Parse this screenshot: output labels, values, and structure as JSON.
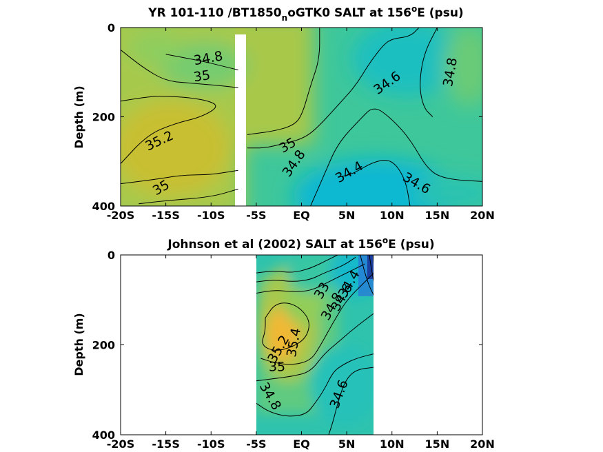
{
  "colors": {
    "ramp": [
      "#2b6fd8",
      "#08b7d0",
      "#1fbfbf",
      "#3cc79b",
      "#77cc6e",
      "#a9c84a",
      "#c9be35",
      "#f0b935"
    ],
    "contour": "#000000",
    "axis": "#000000",
    "background": "#ffffff"
  },
  "chart_data": [
    {
      "type": "heatmap",
      "title": "YR 101-110 /BT1850_noGTK0 SALT at 156ºE (psu)",
      "title_parts": {
        "pre": "YR 101-110 /BT1850",
        "sub": "n",
        "mid": "oGTK0 SALT at 156",
        "sup": "o",
        "post": "E (psu)"
      },
      "xlabel": "",
      "ylabel": "Depth (m)",
      "xlim": [
        -20,
        20
      ],
      "ylim": [
        400,
        0
      ],
      "x_ticks": [
        -20,
        -15,
        -10,
        -5,
        0,
        5,
        10,
        15,
        20
      ],
      "x_tick_labels": [
        "-20S",
        "-15S",
        "-10S",
        "-5S",
        "EQ",
        "5N",
        "10N",
        "15N",
        "20N"
      ],
      "y_ticks": [
        0,
        200,
        400
      ],
      "y_tick_labels": [
        "0",
        "200",
        "400"
      ],
      "units": "psu",
      "gap": [
        -7,
        -6
      ],
      "contour_levels": [
        34.4,
        34.6,
        34.8,
        35,
        35.2
      ],
      "contours": [
        {
          "level": 34.8,
          "points": [
            [
              -15,
              60
            ],
            [
              -11,
              75
            ],
            [
              -9,
              85
            ],
            [
              -7,
              95
            ]
          ]
        },
        {
          "level": 34.8,
          "points": [
            [
              -20,
              50
            ],
            [
              -17.5,
              90
            ],
            [
              -15,
              120
            ],
            [
              -12,
              125
            ],
            [
              -9,
              130
            ],
            [
              -7,
              135
            ]
          ]
        },
        {
          "level": 35.2,
          "points": [
            [
              -20,
              165
            ],
            [
              -17,
              155
            ],
            [
              -15,
              153
            ],
            [
              -11,
              160
            ],
            [
              -9,
              175
            ],
            [
              -11,
              200
            ],
            [
              -14,
              215
            ],
            [
              -17,
              240
            ],
            [
              -20,
              305
            ]
          ]
        },
        {
          "level": 35,
          "points": [
            [
              -20,
              350
            ],
            [
              -16,
              340
            ],
            [
              -13,
              330
            ],
            [
              -10,
              330
            ],
            [
              -7,
              320
            ]
          ]
        },
        {
          "level": 35.2,
          "points": [
            [
              -7,
              362
            ],
            [
              -10,
              380
            ],
            [
              -15,
              388
            ],
            [
              -18,
              395
            ]
          ]
        },
        {
          "level": 35,
          "points": [
            [
              -6,
              240
            ],
            [
              -3,
              232
            ],
            [
              -1,
              220
            ],
            [
              0,
              200
            ],
            [
              1,
              130
            ],
            [
              2,
              70
            ],
            [
              2,
              0
            ]
          ]
        },
        {
          "level": 34.8,
          "points": [
            [
              -6,
              270
            ],
            [
              -4,
              270
            ],
            [
              -2,
              260
            ],
            [
              0,
              250
            ],
            [
              1.5,
              230
            ],
            [
              4,
              175
            ],
            [
              6,
              130
            ],
            [
              7.5,
              80
            ],
            [
              9,
              40
            ],
            [
              10,
              25
            ],
            [
              12,
              20
            ],
            [
              13,
              0
            ]
          ]
        },
        {
          "level": 34.6,
          "points": [
            [
              1,
              400
            ],
            [
              2.5,
              330
            ],
            [
              4,
              260
            ],
            [
              6.5,
              205
            ],
            [
              8,
              175
            ],
            [
              10,
              205
            ],
            [
              12,
              250
            ],
            [
              14,
              320
            ],
            [
              16,
              340
            ],
            [
              20,
              345
            ]
          ]
        },
        {
          "level": 34.6,
          "points": [
            [
              15,
              0
            ],
            [
              13.5,
              60
            ],
            [
              13,
              130
            ],
            [
              13.5,
              180
            ],
            [
              14.5,
              200
            ]
          ]
        },
        {
          "level": 34.4,
          "points": [
            [
              4,
              335
            ],
            [
              5.5,
              330
            ],
            [
              8,
              300
            ],
            [
              10,
              295
            ],
            [
              11.5,
              340
            ],
            [
              12,
              400
            ]
          ]
        }
      ],
      "labels": [
        {
          "text": "34.8",
          "x": -10.3,
          "y": 70,
          "rotate": -10
        },
        {
          "text": "35",
          "x": -11,
          "y": 110,
          "rotate": -8
        },
        {
          "text": "35.2",
          "x": -15.7,
          "y": 255,
          "rotate": -25
        },
        {
          "text": "35",
          "x": -15.5,
          "y": 360,
          "rotate": -30
        },
        {
          "text": "35",
          "x": -1.5,
          "y": 265,
          "rotate": -30
        },
        {
          "text": "34.8",
          "x": -0.8,
          "y": 305,
          "rotate": -55
        },
        {
          "text": "34.4",
          "x": 5.3,
          "y": 325,
          "rotate": -30
        },
        {
          "text": "34.6",
          "x": 9.5,
          "y": 125,
          "rotate": -35
        },
        {
          "text": "34.8",
          "x": 16.5,
          "y": 100,
          "rotate": -80
        },
        {
          "text": "34.6",
          "x": 12.7,
          "y": 350,
          "rotate": 30
        }
      ]
    },
    {
      "type": "heatmap",
      "title": "Johnson et al (2002) SALT at 156ºE (psu)",
      "title_parts": {
        "pre": "Johnson et al (2002) SALT at 156",
        "sup": "o",
        "post": "E (psu)"
      },
      "xlabel": "",
      "ylabel": "Depth (m)",
      "xlim": [
        -20,
        20
      ],
      "ylim": [
        400,
        0
      ],
      "x_ticks": [
        -20,
        -15,
        -10,
        -5,
        0,
        5,
        10,
        15,
        20
      ],
      "x_tick_labels": [
        "-20S",
        "-15S",
        "-10S",
        "-5S",
        "EQ",
        "5N",
        "10N",
        "15N",
        "20N"
      ],
      "y_ticks": [
        0,
        200,
        400
      ],
      "y_tick_labels": [
        "0",
        "200",
        "400"
      ],
      "units": "psu",
      "data_range": [
        -5,
        8
      ],
      "contour_levels": [
        34.0,
        34.2,
        34.4,
        34.6,
        34.8,
        35,
        35.2,
        35.4
      ],
      "contours": [
        {
          "level": 34.8,
          "points": [
            [
              -5,
              40
            ],
            [
              -3,
              35
            ],
            [
              -1,
              40
            ],
            [
              1,
              30
            ],
            [
              3,
              10
            ],
            [
              4,
              0
            ]
          ]
        },
        {
          "level": 35,
          "points": [
            [
              -5,
              60
            ],
            [
              -3,
              55
            ],
            [
              -1,
              60
            ],
            [
              1,
              55
            ],
            [
              2.5,
              40
            ],
            [
              4.5,
              25
            ],
            [
              6,
              5
            ]
          ]
        },
        {
          "level": 35.2,
          "points": [
            [
              -5,
              85
            ],
            [
              -3,
              78
            ],
            [
              -1,
              82
            ],
            [
              1,
              80
            ],
            [
              3,
              60
            ],
            [
              5,
              40
            ],
            [
              7,
              20
            ]
          ]
        },
        {
          "level": 35.4,
          "points": [
            [
              -4,
              140
            ],
            [
              -3,
              110
            ],
            [
              -1.5,
              105
            ],
            [
              0,
              120
            ],
            [
              1,
              150
            ],
            [
              0.5,
              185
            ],
            [
              -1,
              205
            ],
            [
              -3,
              215
            ],
            [
              -4.5,
              200
            ],
            [
              -4,
              170
            ],
            [
              -4,
              140
            ]
          ]
        },
        {
          "level": 35.2,
          "points": [
            [
              -4.5,
              230
            ],
            [
              -3,
              240
            ],
            [
              -1,
              245
            ],
            [
              1,
              235
            ],
            [
              2,
              205
            ],
            [
              3.5,
              150
            ],
            [
              5,
              100
            ],
            [
              7,
              60
            ],
            [
              8,
              40
            ]
          ]
        },
        {
          "level": 35,
          "points": [
            [
              -5,
              280
            ],
            [
              -3,
              275
            ],
            [
              -1,
              270
            ],
            [
              1,
              260
            ],
            [
              2.5,
              220
            ],
            [
              4,
              195
            ],
            [
              6,
              160
            ],
            [
              8,
              130
            ]
          ]
        },
        {
          "level": 34.8,
          "points": [
            [
              -5,
              330
            ],
            [
              -3.5,
              350
            ],
            [
              -1.5,
              360
            ],
            [
              0.5,
              355
            ],
            [
              1.5,
              330
            ],
            [
              2.5,
              300
            ],
            [
              3.5,
              260
            ],
            [
              4.5,
              245
            ],
            [
              6,
              230
            ],
            [
              8,
              220
            ]
          ]
        },
        {
          "level": 34.6,
          "points": [
            [
              3,
              400
            ],
            [
              3.5,
              370
            ],
            [
              4,
              330
            ],
            [
              4.8,
              280
            ],
            [
              6,
              255
            ],
            [
              8,
              250
            ]
          ]
        },
        {
          "level": 34.4,
          "points": [
            [
              6.5,
              0
            ],
            [
              7,
              40
            ],
            [
              7.5,
              70
            ],
            [
              8,
              90
            ]
          ]
        },
        {
          "level": 34.2,
          "points": [
            [
              7.5,
              0
            ],
            [
              7.8,
              40
            ],
            [
              8,
              60
            ]
          ]
        },
        {
          "level": 34.0,
          "points": [
            [
              7.9,
              0
            ],
            [
              8,
              20
            ]
          ]
        }
      ],
      "labels": [
        {
          "text": "34.4",
          "x": 5.3,
          "y": 65,
          "rotate": -60
        },
        {
          "text": "34.6",
          "x": 4.5,
          "y": 95,
          "rotate": -60
        },
        {
          "text": "34.8",
          "x": 3.4,
          "y": 115,
          "rotate": -60
        },
        {
          "text": "33",
          "x": 2.3,
          "y": 80,
          "rotate": -60
        },
        {
          "text": "35.4",
          "x": -0.8,
          "y": 195,
          "rotate": -80
        },
        {
          "text": "35.2",
          "x": -2.5,
          "y": 210,
          "rotate": -60
        },
        {
          "text": "35",
          "x": -2.7,
          "y": 250,
          "rotate": 0
        },
        {
          "text": "34.6",
          "x": 4.2,
          "y": 310,
          "rotate": -70
        },
        {
          "text": "34.8",
          "x": -3.5,
          "y": 315,
          "rotate": 60
        }
      ]
    }
  ]
}
